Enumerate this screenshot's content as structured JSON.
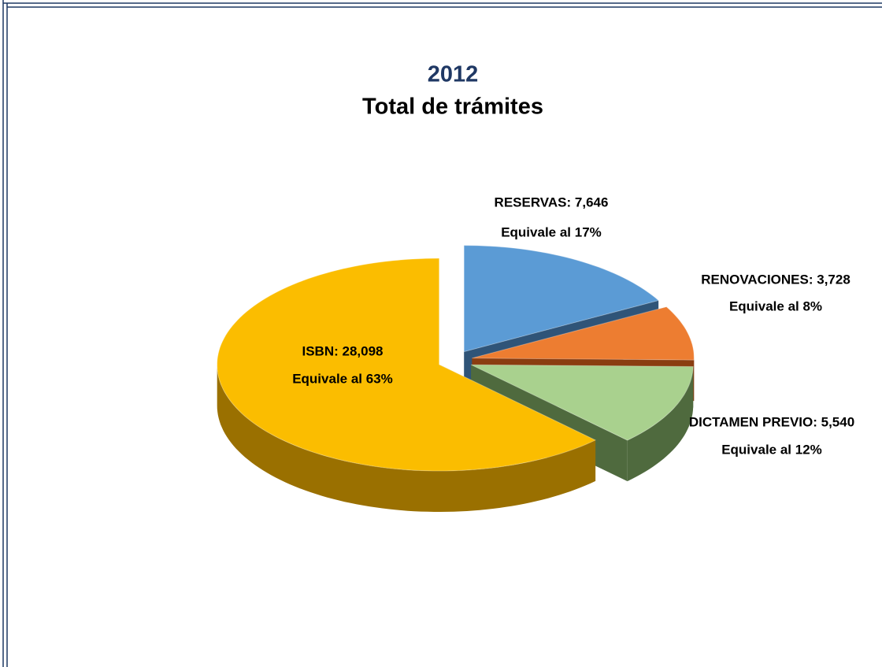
{
  "chart_data": {
    "type": "pie3d",
    "supertitle": "2012",
    "title": "Total de trámites",
    "values": [
      7646,
      3728,
      5540,
      28098
    ],
    "value_labels": [
      "RESERVAS: 7,646",
      "RENOVACIONES: 3,728",
      "DICTAMEN PREVIO: 5,540",
      "ISBN: 28,098"
    ],
    "percents": [
      17,
      8,
      12,
      63
    ],
    "percent_labels": [
      "Equivale al 17%",
      "Equivale al 8%",
      "Equivale al 12%",
      "Equivale al 63%"
    ],
    "colors": [
      "#5b9bd5",
      "#ed7d31",
      "#a9d18e",
      "#fbbd00"
    ],
    "side_colors": [
      "#2f5478",
      "#8a3d10",
      "#4f6a3e",
      "#9a7000"
    ]
  }
}
